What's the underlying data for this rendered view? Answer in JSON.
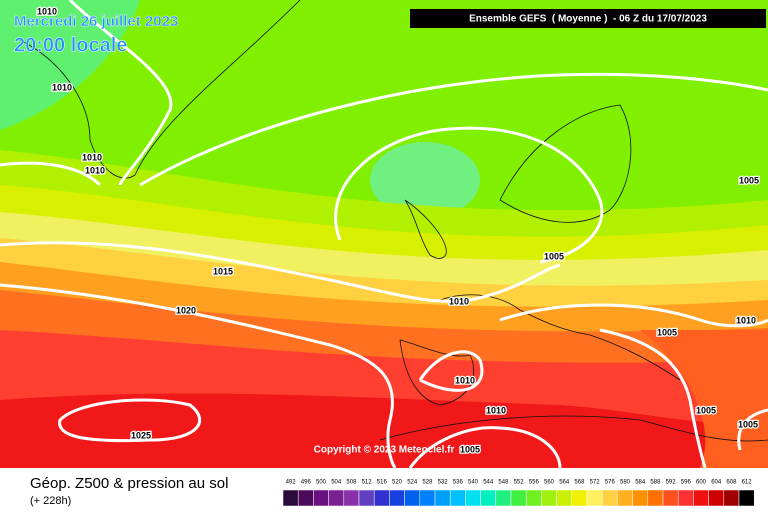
{
  "header": {
    "date": "Mercredi 26 juillet 2023",
    "time": "20:00 locale",
    "banner": "Ensemble GEFS  ( Moyenne )  - 06 Z du 17/07/2023"
  },
  "copyright": "Copyright © 2023 Meteociel.fr",
  "isobar_labels": [
    "1010",
    "1010",
    "1010",
    "1010",
    "1015",
    "1020",
    "1025",
    "1010",
    "1010",
    "1010",
    "1005",
    "1005",
    "1005",
    "1010",
    "1005",
    "1005",
    "1005"
  ],
  "footer": {
    "title": "Géop. Z500 & pression au sol",
    "lead": "(+ 228h)"
  },
  "legend": {
    "labels": [
      492,
      496,
      500,
      504,
      508,
      512,
      516,
      520,
      524,
      528,
      532,
      536,
      540,
      544,
      548,
      552,
      556,
      560,
      564,
      568,
      572,
      576,
      580,
      584,
      588,
      592,
      596,
      600,
      604,
      608,
      612
    ],
    "colors": [
      "#2a0a3a",
      "#4b0a5a",
      "#6a1080",
      "#7a2090",
      "#8a30a8",
      "#6040c0",
      "#3030d0",
      "#1840e0",
      "#0060f0",
      "#0080ff",
      "#00a0ff",
      "#00c0ff",
      "#00e0f0",
      "#00f0c0",
      "#20f080",
      "#40f040",
      "#70f020",
      "#a0f010",
      "#c8f000",
      "#f0f000",
      "#fff060",
      "#ffd040",
      "#ffb020",
      "#ff9000",
      "#ff7000",
      "#ff5020",
      "#ff3030",
      "#f01010",
      "#d00000",
      "#a00000",
      "#000000"
    ]
  }
}
